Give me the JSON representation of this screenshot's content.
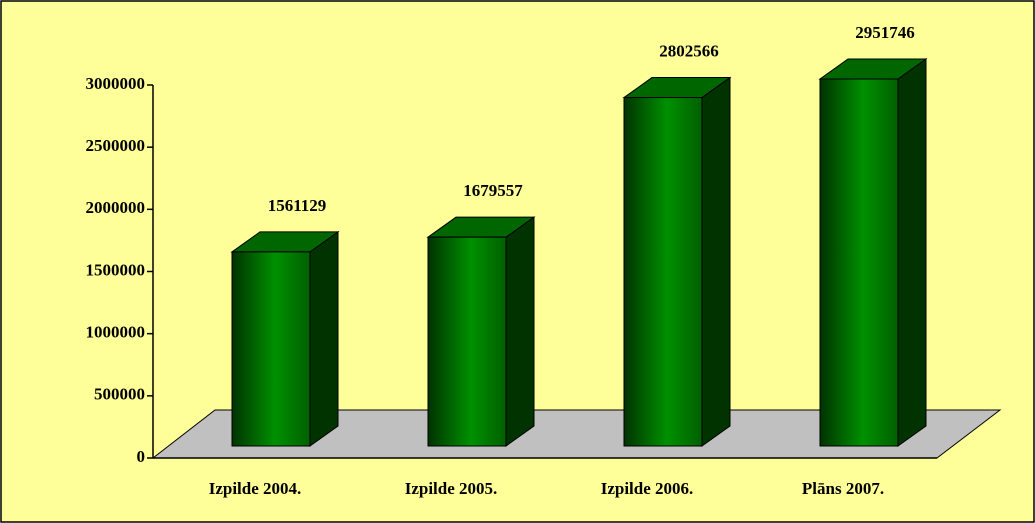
{
  "chart_data": {
    "type": "bar3d",
    "categories": [
      "Izpilde 2004.",
      "Izpilde 2005.",
      "Izpilde 2006.",
      "Plāns 2007."
    ],
    "values": [
      1561129,
      1679557,
      2802566,
      2951746
    ],
    "color": "#008000",
    "ylim": [
      0,
      3000000
    ],
    "yticks": [
      0,
      500000,
      1000000,
      1500000,
      2000000,
      2500000,
      3000000
    ],
    "grid": false
  }
}
